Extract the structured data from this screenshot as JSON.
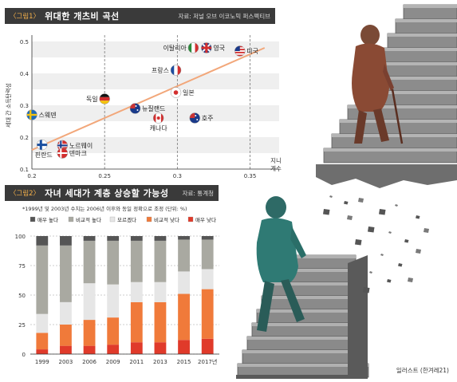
{
  "chart1": {
    "tag": "〈그림1〉",
    "title": "위대한 개츠비 곡선",
    "source": "자료: 저널 오브 이코노믹 퍼스펙티브",
    "ylabel": "세대 간 소득탄력성",
    "xlabel_lines": [
      "지니",
      "계수"
    ]
  },
  "chart2": {
    "tag": "〈그림2〉",
    "title": "자녀 세대가 계층 상승할 가능성",
    "source": "자료: 통계청",
    "note": "*1999년 및 2003년 수치는 2006년 이후와 동일 정확으로 조정 (단위: %)"
  },
  "credit": "일러스트 (한겨레21)",
  "chart_data": [
    {
      "type": "scatter",
      "title": "위대한 개츠비 곡선",
      "xlabel": "지니 계수",
      "ylabel": "세대 간 소득탄력성",
      "xlim": [
        0.2,
        0.37
      ],
      "ylim": [
        0.1,
        0.5
      ],
      "xticks": [
        "0.2",
        "0.25",
        "0.3",
        "0.35"
      ],
      "yticks": [
        "0.1",
        "0.2",
        "0.3",
        "0.4",
        "0.5"
      ],
      "trendline": [
        [
          0.2,
          0.16
        ],
        [
          0.36,
          0.48
        ]
      ],
      "points": [
        {
          "label": "핀란드",
          "x": 0.207,
          "y": 0.176,
          "flag": "finland"
        },
        {
          "label": "노르웨이",
          "x": 0.221,
          "y": 0.174,
          "flag": "norway"
        },
        {
          "label": "덴마크",
          "x": 0.221,
          "y": 0.15,
          "flag": "denmark"
        },
        {
          "label": "스웨덴",
          "x": 0.2,
          "y": 0.27,
          "flag": "sweden"
        },
        {
          "label": "독일",
          "x": 0.25,
          "y": 0.32,
          "flag": "germany"
        },
        {
          "label": "뉴질랜드",
          "x": 0.271,
          "y": 0.29,
          "flag": "newzealand"
        },
        {
          "label": "캐나다",
          "x": 0.287,
          "y": 0.26,
          "flag": "canada"
        },
        {
          "label": "일본",
          "x": 0.299,
          "y": 0.34,
          "flag": "japan"
        },
        {
          "label": "호주",
          "x": 0.312,
          "y": 0.26,
          "flag": "australia"
        },
        {
          "label": "프랑스",
          "x": 0.299,
          "y": 0.41,
          "flag": "france"
        },
        {
          "label": "이탈리아",
          "x": 0.311,
          "y": 0.48,
          "flag": "italy"
        },
        {
          "label": "영국",
          "x": 0.32,
          "y": 0.48,
          "flag": "uk"
        },
        {
          "label": "미국",
          "x": 0.343,
          "y": 0.47,
          "flag": "usa"
        }
      ]
    },
    {
      "type": "bar",
      "stacked": true,
      "title": "자녀 세대가 계층 상승할 가능성",
      "categories": [
        "1999",
        "2003",
        "2006",
        "2009",
        "2011",
        "2013",
        "2015",
        "2017년"
      ],
      "ylim": [
        0,
        100
      ],
      "yticks": [
        "0",
        "25",
        "50",
        "75",
        "100"
      ],
      "legend_position": "top",
      "series": [
        {
          "name": "매우 낮다",
          "color": "#e03a2a",
          "values": [
            4,
            7,
            7,
            8,
            10,
            10,
            12,
            13
          ]
        },
        {
          "name": "비교적 낮다",
          "color": "#f07a3a",
          "values": [
            14,
            18,
            22,
            23,
            34,
            34,
            39,
            42
          ]
        },
        {
          "name": "모르겠다",
          "color": "#e6e6e6",
          "values": [
            16,
            19,
            31,
            28,
            17,
            17,
            19,
            17
          ]
        },
        {
          "name": "비교적 높다",
          "color": "#a9a9a1",
          "values": [
            58,
            48,
            36,
            37,
            35,
            35,
            27,
            25
          ]
        },
        {
          "name": "매우 높다",
          "color": "#555555",
          "values": [
            8,
            8,
            4,
            4,
            4,
            4,
            3,
            3
          ]
        }
      ]
    }
  ]
}
